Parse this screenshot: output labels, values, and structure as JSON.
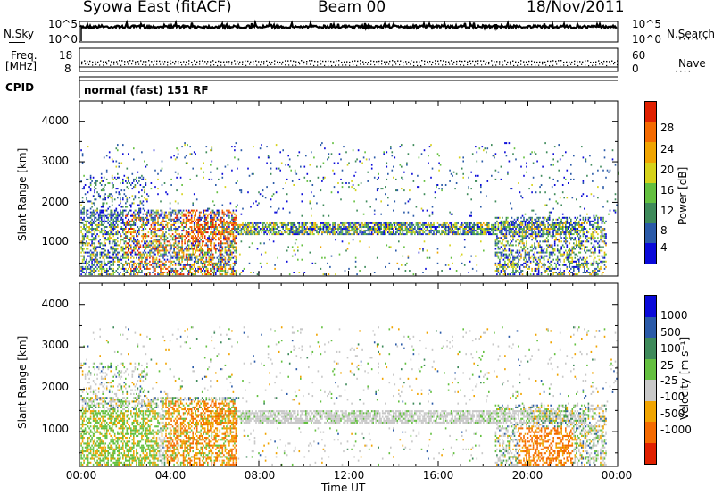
{
  "header": {
    "station": "Syowa East (fitACF)",
    "beam": "Beam 00",
    "date": "18/Nov/2011"
  },
  "info_panels": {
    "nsky_label": "N.Sky",
    "nsearch_label": "N.Search",
    "freq_label_1": "Freq.",
    "freq_label_2": "[MHz]",
    "nave_label": "Nave",
    "cpid_label": "CPID",
    "cpid_value": "normal (fast) 151 RF",
    "nsky_ticks": [
      "10^5",
      "10^0"
    ],
    "nsearch_ticks": [
      "10^5",
      "10^0"
    ],
    "freq_ticks": [
      "18",
      "8"
    ],
    "nave_ticks": [
      "60",
      "0"
    ]
  },
  "colors": {
    "power": [
      "#0a0ad9",
      "#2a5aa8",
      "#3e8a5a",
      "#64c040",
      "#d6d21a",
      "#f0a400",
      "#f46a00",
      "#e02000"
    ],
    "velocity": [
      "#0a0ad9",
      "#2a5aa8",
      "#3e8a5a",
      "#64c040",
      "#c8c8c8",
      "#f0a400",
      "#f46a00",
      "#e02000"
    ]
  },
  "chart_data": [
    {
      "type": "heatmap",
      "panel": "power",
      "ylabel": "Slant Range [km]",
      "yticks": [
        "1000",
        "2000",
        "3000",
        "4000"
      ],
      "ylim": [
        180,
        4500
      ],
      "xlim": [
        0,
        24
      ],
      "colorbar_title": "Power [dB]",
      "colorbar_ticks": [
        "4",
        "8",
        "12",
        "16",
        "20",
        "24",
        "28"
      ],
      "colorbar_range": [
        0,
        30
      ]
    },
    {
      "type": "heatmap",
      "panel": "velocity",
      "ylabel": "Slant Range [km]",
      "yticks": [
        "1000",
        "2000",
        "3000",
        "4000"
      ],
      "ylim": [
        180,
        4500
      ],
      "xlim": [
        0,
        24
      ],
      "colorbar_title": "Velocity [m s⁻¹]",
      "colorbar_ticks": [
        "1000",
        "500",
        "100",
        "25",
        "-25",
        "-100",
        "-500",
        "-1000"
      ],
      "xlabel": "Time UT",
      "xticks": [
        "00:00",
        "04:00",
        "08:00",
        "12:00",
        "16:00",
        "20:00",
        "00:00"
      ]
    }
  ]
}
